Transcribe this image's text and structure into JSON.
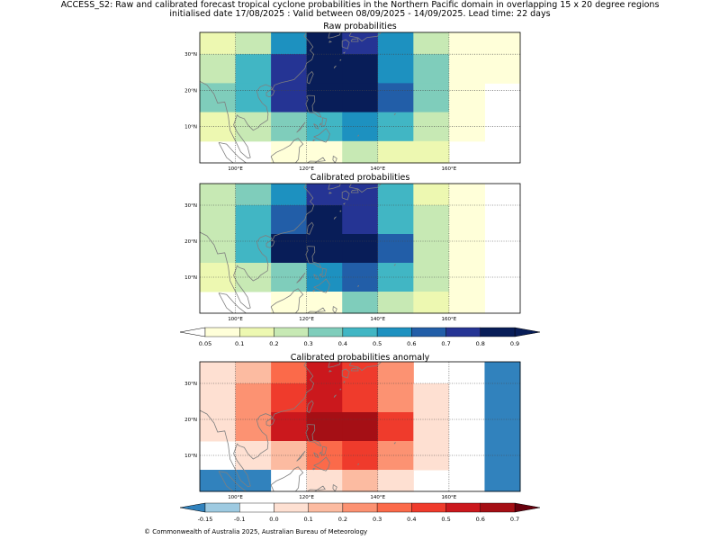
{
  "header": {
    "line1": "ACCESS_S2: Raw and calibrated forecast tropical cyclone probabilities in the Northern Pacific domain in overlapping 15 x 20 degree regions",
    "line2": "initialised date 17/08/2025 :  Valid between 08/09/2025 - 14/09/2025. Lead time: 22 days"
  },
  "axes": {
    "lon_ticks": [
      "100°E",
      "120°E",
      "140°E",
      "160°E"
    ],
    "lat_ticks": [
      "30°N",
      "20°N",
      "10°N"
    ],
    "lon_values": [
      100,
      120,
      140,
      160
    ],
    "lat_values": [
      30,
      20,
      10
    ],
    "lon_range": [
      90,
      180
    ],
    "lat_range": [
      0,
      36
    ]
  },
  "land_color": "#7f7f7f",
  "chart_data": [
    {
      "type": "heatmap",
      "title": "Raw probabilities",
      "lon_edges": [
        90,
        100,
        110,
        120,
        130,
        140,
        150,
        160,
        170,
        180
      ],
      "lat_edges": [
        36,
        30,
        22,
        14,
        6,
        0
      ],
      "class_values": [
        [
          0.15,
          0.25,
          0.55,
          0.8,
          0.75,
          0.55,
          0.25,
          0.05,
          0.05
        ],
        [
          0.25,
          0.45,
          0.75,
          0.85,
          0.85,
          0.55,
          0.35,
          0.05,
          0.05
        ],
        [
          0.35,
          0.45,
          0.7,
          0.95,
          0.95,
          0.65,
          0.35,
          0.05,
          null
        ],
        [
          0.15,
          0.25,
          0.35,
          0.45,
          0.55,
          0.45,
          0.25,
          0.05,
          null
        ],
        [
          null,
          null,
          0.05,
          0.05,
          0.25,
          0.15,
          0.15,
          null,
          null
        ]
      ]
    },
    {
      "type": "heatmap",
      "title": "Calibrated probabilities",
      "lon_edges": [
        90,
        100,
        110,
        120,
        130,
        140,
        150,
        160,
        170,
        180
      ],
      "lat_edges": [
        36,
        30,
        22,
        14,
        6,
        0
      ],
      "class_values": [
        [
          0.25,
          0.35,
          0.55,
          0.75,
          0.75,
          0.45,
          0.15,
          0.05,
          null
        ],
        [
          0.25,
          0.45,
          0.65,
          0.85,
          0.75,
          0.45,
          0.25,
          0.05,
          null
        ],
        [
          0.25,
          0.45,
          0.85,
          0.95,
          0.95,
          0.65,
          0.25,
          0.05,
          null
        ],
        [
          0.15,
          0.25,
          0.35,
          0.55,
          0.65,
          0.45,
          0.25,
          0.05,
          null
        ],
        [
          null,
          null,
          0.05,
          0.05,
          0.35,
          0.25,
          0.15,
          0.05,
          null
        ]
      ]
    },
    {
      "type": "heatmap",
      "title": "Calibrated probabilities anomaly",
      "lon_edges": [
        90,
        100,
        110,
        120,
        130,
        140,
        150,
        160,
        170,
        180
      ],
      "lat_edges": [
        36,
        30,
        22,
        14,
        6,
        0
      ],
      "class_values": [
        [
          0.05,
          0.15,
          0.35,
          0.55,
          0.45,
          0.25,
          null,
          -0.05,
          -0.2
        ],
        [
          0.05,
          0.25,
          0.45,
          0.55,
          0.45,
          0.25,
          0.05,
          -0.05,
          -0.2
        ],
        [
          0.05,
          0.25,
          0.55,
          0.65,
          0.65,
          0.45,
          0.05,
          -0.05,
          -0.2
        ],
        [
          null,
          0.05,
          0.15,
          0.35,
          0.45,
          0.25,
          0.05,
          -0.05,
          -0.2
        ],
        [
          -0.2,
          -0.2,
          -0.05,
          0.05,
          0.15,
          0.05,
          null,
          -0.05,
          -0.2
        ]
      ]
    }
  ],
  "colorbars": [
    {
      "ticks": [
        "0.05",
        "0.1",
        "0.2",
        "0.3",
        "0.4",
        "0.5",
        "0.6",
        "0.7",
        "0.8",
        "0.9"
      ],
      "colors": [
        "#ffffd9",
        "#edf8b1",
        "#c7e9b4",
        "#7fcdbb",
        "#41b6c4",
        "#1d91c0",
        "#225ea8",
        "#253494",
        "#081d58"
      ],
      "under_color": "#ffffff",
      "over_color": "#081d58"
    },
    {
      "ticks": [
        "-0.15",
        "-0.1",
        "0.0",
        "0.1",
        "0.2",
        "0.3",
        "0.4",
        "0.5",
        "0.6",
        "0.7"
      ],
      "colors": [
        "#9ecae1",
        "#ffffff",
        "#fee0d2",
        "#fcbba1",
        "#fc9272",
        "#fb6a4a",
        "#ef3b2c",
        "#cb181d",
        "#a50f15"
      ],
      "under_color": "#3182bd",
      "over_color": "#67000d"
    }
  ],
  "footer": "© Commonwealth of Australia 2025, Australian Bureau of Meteorology"
}
